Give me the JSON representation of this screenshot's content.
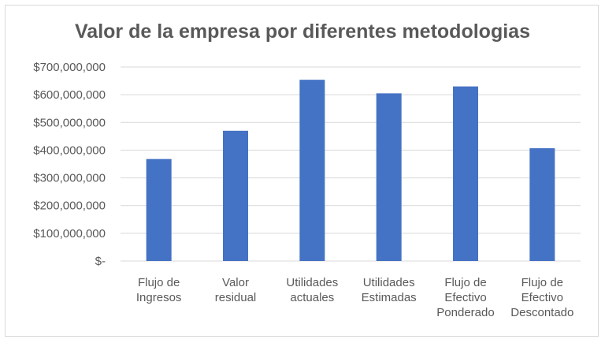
{
  "chart_data": {
    "type": "bar",
    "title": "Valor de la empresa por diferentes metodologias",
    "xlabel": "",
    "ylabel": "",
    "categories": [
      "Flujo de Ingresos",
      "Valor residual",
      "Utilidades actuales",
      "Utilidades Estimadas",
      "Flujo de Efectivo Ponderado",
      "Flujo de Efectivo Descontado"
    ],
    "category_lines": [
      [
        "Flujo de",
        "Ingresos"
      ],
      [
        "Valor",
        "residual"
      ],
      [
        "Utilidades",
        "actuales"
      ],
      [
        "Utilidades",
        "Estimadas"
      ],
      [
        "Flujo de",
        "Efectivo",
        "Ponderado"
      ],
      [
        "Flujo de",
        "Efectivo",
        "Descontado"
      ]
    ],
    "values": [
      368000000,
      470000000,
      654000000,
      605000000,
      630000000,
      407000000
    ],
    "ylim": [
      0,
      700000000
    ],
    "ytick_values": [
      0,
      100000000,
      200000000,
      300000000,
      400000000,
      500000000,
      600000000,
      700000000
    ],
    "ytick_labels": [
      "$-",
      "$100,000,000",
      "$200,000,000",
      "$300,000,000",
      "$400,000,000",
      "$500,000,000",
      "$600,000,000",
      "$700,000,000"
    ],
    "grid": true,
    "legend": "none",
    "bar_color": "#4472c4"
  }
}
